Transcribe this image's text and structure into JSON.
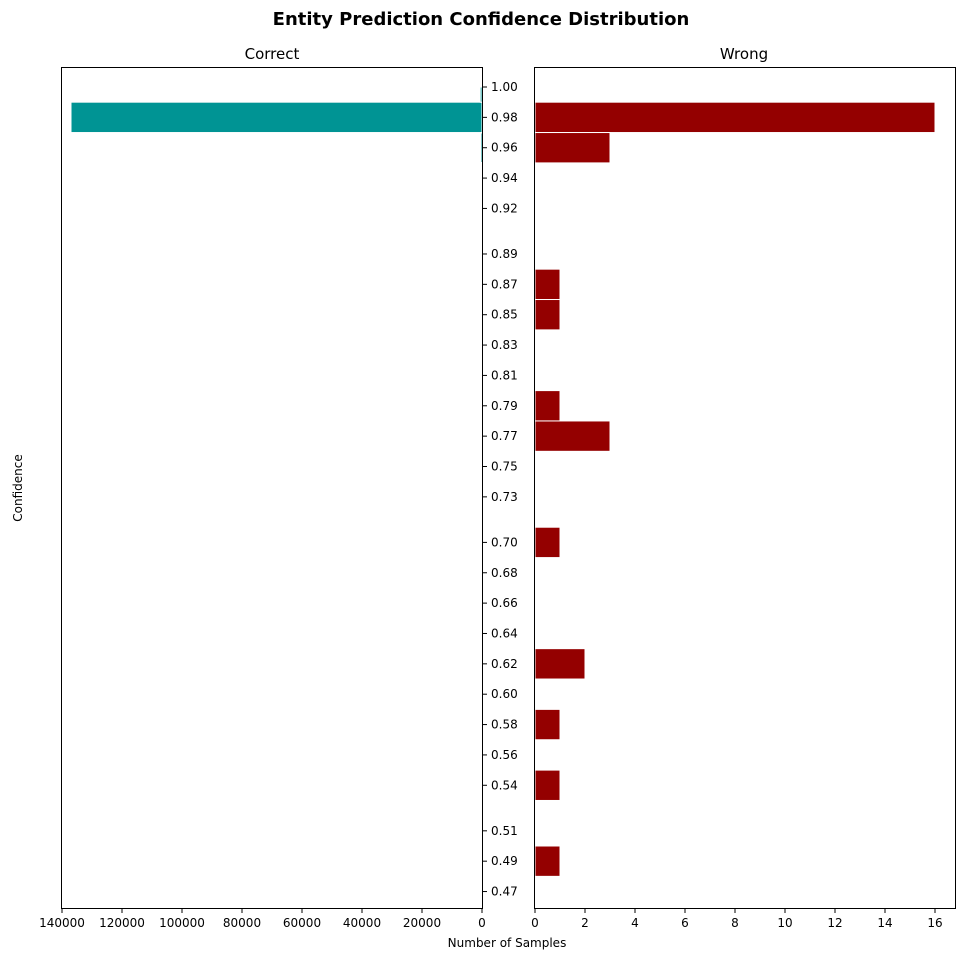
{
  "chart_data": {
    "type": "bar",
    "orientation": "horizontal",
    "title": "Entity Prediction Confidence Distribution",
    "ylabel": "Confidence",
    "xlabel": "Number of Samples",
    "colors": {
      "correct": "#009494",
      "wrong": "#940000",
      "edge": "#ffffff"
    },
    "bin_ticks": [
      "1.00",
      "0.98",
      "0.96",
      "0.94",
      "0.92",
      "0.89",
      "0.87",
      "0.85",
      "0.83",
      "0.81",
      "0.79",
      "0.77",
      "0.75",
      "0.73",
      "0.70",
      "0.68",
      "0.66",
      "0.64",
      "0.62",
      "0.60",
      "0.58",
      "0.56",
      "0.54",
      "0.51",
      "0.49",
      "0.47"
    ],
    "panels": [
      {
        "name": "Correct",
        "xlim": [
          0,
          140000
        ],
        "inverted": true,
        "xticks": [
          0,
          20000,
          40000,
          60000,
          80000,
          100000,
          120000,
          140000
        ],
        "bars": [
          {
            "low": 0.97,
            "high": 0.99,
            "value": 137000
          },
          {
            "low": 0.99,
            "high": 1.0,
            "value": 600
          },
          {
            "low": 0.95,
            "high": 0.97,
            "value": 300
          }
        ]
      },
      {
        "name": "Wrong",
        "xlim": [
          0,
          16.8
        ],
        "inverted": false,
        "xticks": [
          0,
          2,
          4,
          6,
          8,
          10,
          12,
          14,
          16
        ],
        "bars": [
          {
            "low": 0.97,
            "high": 0.99,
            "value": 16
          },
          {
            "low": 0.95,
            "high": 0.97,
            "value": 3
          },
          {
            "low": 0.86,
            "high": 0.88,
            "value": 1
          },
          {
            "low": 0.84,
            "high": 0.86,
            "value": 1
          },
          {
            "low": 0.78,
            "high": 0.8,
            "value": 1
          },
          {
            "low": 0.76,
            "high": 0.78,
            "value": 3
          },
          {
            "low": 0.69,
            "high": 0.71,
            "value": 1
          },
          {
            "low": 0.61,
            "high": 0.63,
            "value": 2
          },
          {
            "low": 0.57,
            "high": 0.59,
            "value": 1
          },
          {
            "low": 0.53,
            "high": 0.55,
            "value": 1
          },
          {
            "low": 0.48,
            "high": 0.5,
            "value": 1
          }
        ]
      }
    ]
  }
}
